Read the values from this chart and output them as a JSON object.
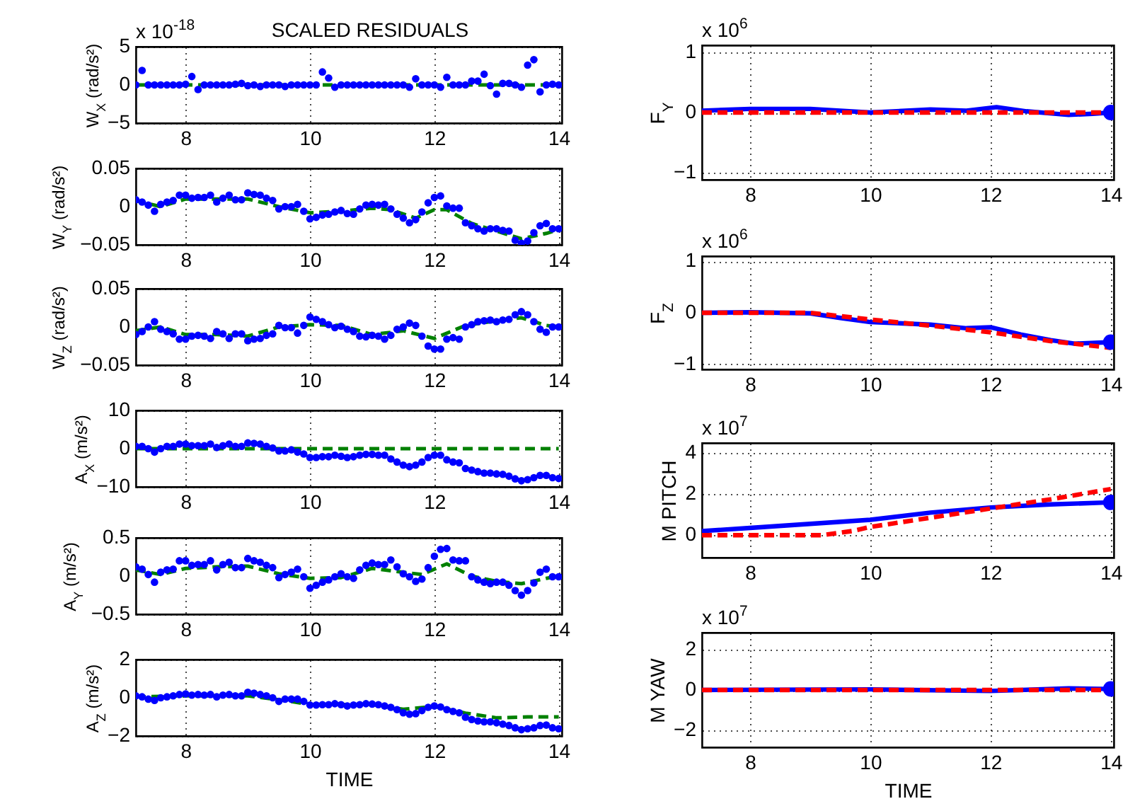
{
  "chart_data": [
    {
      "type": "scatter",
      "title": "SCALED RESIDUALS",
      "ylabel": "W$_{X}$ (rad/s²)",
      "annotations": [
        "x 10$^{-18}$"
      ],
      "xlim": [
        7.2,
        14.05
      ],
      "xticks": [
        8,
        10,
        12,
        14
      ],
      "ylim": [
        -5,
        5
      ],
      "yticks": [
        -5,
        0,
        5
      ],
      "grid": true,
      "x": [
        7.2,
        7.3,
        7.4,
        7.5,
        7.6,
        7.7,
        7.8,
        7.9,
        8,
        8.1,
        8.2,
        8.3,
        8.4,
        8.5,
        8.6,
        8.7,
        8.8,
        8.9,
        9,
        9.1,
        9.2,
        9.3,
        9.4,
        9.5,
        9.6,
        9.7,
        9.8,
        9.9,
        10,
        10.1,
        10.2,
        10.3,
        10.4,
        10.5,
        10.6,
        10.7,
        10.8,
        10.9,
        11,
        11.1,
        11.2,
        11.3,
        11.4,
        11.5,
        11.6,
        11.7,
        11.8,
        11.9,
        12,
        12.1,
        12.2,
        12.3,
        12.4,
        12.5,
        12.6,
        12.7,
        12.8,
        12.9,
        13,
        13.1,
        13.2,
        13.3,
        13.4,
        13.5,
        13.6,
        13.7,
        13.8,
        13.9,
        14
      ],
      "series": [
        {
          "type": "line",
          "color": "#008000",
          "line_style": "dashed",
          "x": [
            7.2,
            14
          ],
          "values": [
            0,
            0
          ]
        },
        {
          "color": "#0000ff",
          "marker": "circle",
          "values": [
            0,
            1.9,
            0,
            0,
            0,
            0,
            0,
            0,
            0.1,
            1.1,
            -0.6,
            0,
            0,
            0,
            0,
            0,
            0.1,
            0.2,
            -0.1,
            0,
            -0.2,
            0,
            0,
            0,
            -0.2,
            0,
            0,
            0,
            0,
            0,
            1.7,
            0.9,
            -0.3,
            0,
            0,
            0,
            0,
            0,
            0,
            0,
            0,
            0,
            0,
            0,
            -0.3,
            0.8,
            0,
            0,
            0,
            -0.3,
            1.0,
            0,
            0,
            0,
            0.5,
            0.5,
            1.4,
            -0.1,
            -1.2,
            0.2,
            0.2,
            0,
            -0.3,
            2.6,
            3.3,
            -0.9,
            0,
            0.1,
            0
          ]
        }
      ]
    },
    {
      "type": "scatter",
      "ylabel": "W$_{Y}$ (rad/s²)",
      "xlim": [
        7.2,
        14.05
      ],
      "xticks": [
        8,
        10,
        12,
        14
      ],
      "ylim": [
        -0.05,
        0.05
      ],
      "yticks": [
        -0.05,
        0,
        0.05
      ],
      "grid": true,
      "x": [
        7.2,
        7.3,
        7.4,
        7.5,
        7.6,
        7.7,
        7.8,
        7.9,
        8,
        8.1,
        8.2,
        8.3,
        8.4,
        8.5,
        8.6,
        8.7,
        8.8,
        8.9,
        9,
        9.1,
        9.2,
        9.3,
        9.4,
        9.5,
        9.6,
        9.7,
        9.8,
        9.9,
        10,
        10.1,
        10.2,
        10.3,
        10.4,
        10.5,
        10.6,
        10.7,
        10.8,
        10.9,
        11,
        11.1,
        11.2,
        11.3,
        11.4,
        11.5,
        11.6,
        11.7,
        11.8,
        11.9,
        12,
        12.1,
        12.2,
        12.3,
        12.4,
        12.5,
        12.6,
        12.7,
        12.8,
        12.9,
        13,
        13.1,
        13.2,
        13.3,
        13.4,
        13.5,
        13.6,
        13.7,
        13.8,
        13.9,
        14
      ],
      "series": [
        {
          "type": "line",
          "color": "#008000",
          "line_style": "dashed",
          "x": [
            7.2,
            7.6,
            8,
            8.5,
            9,
            9.5,
            10,
            10.5,
            11,
            11.3,
            11.7,
            12,
            12.2,
            12.6,
            13,
            13.4,
            13.8,
            14
          ],
          "values": [
            0.008,
            0,
            0.01,
            0.01,
            0.01,
            0,
            -0.008,
            -0.006,
            -0.002,
            -0.004,
            -0.015,
            -0.004,
            -0.004,
            -0.022,
            -0.032,
            -0.042,
            -0.035,
            -0.03
          ]
        },
        {
          "color": "#0000ff",
          "marker": "circle",
          "values": [
            0.009,
            0.006,
            0.002,
            -0.006,
            0.003,
            0.006,
            0.008,
            0.015,
            0.015,
            0.011,
            0.012,
            0.012,
            0.015,
            0.006,
            0.011,
            0.015,
            0.009,
            0.009,
            0.018,
            0.016,
            0.015,
            0.011,
            0.008,
            -0.003,
            0,
            0,
            0.003,
            -0.006,
            -0.016,
            -0.014,
            -0.011,
            -0.01,
            -0.007,
            -0.005,
            -0.009,
            -0.01,
            -0.003,
            0.002,
            0.003,
            0.002,
            0.003,
            -0.003,
            -0.01,
            -0.015,
            -0.021,
            -0.017,
            -0.007,
            0.005,
            0.012,
            0.014,
            0.001,
            -0.002,
            -0.002,
            -0.021,
            -0.025,
            -0.029,
            -0.032,
            -0.029,
            -0.029,
            -0.031,
            -0.032,
            -0.044,
            -0.048,
            -0.045,
            -0.034,
            -0.025,
            -0.022,
            -0.029,
            -0.029
          ]
        }
      ]
    },
    {
      "type": "scatter",
      "ylabel": "W$_{Z}$ (rad/s²)",
      "xlim": [
        7.2,
        14.05
      ],
      "xticks": [
        8,
        10,
        12,
        14
      ],
      "ylim": [
        -0.05,
        0.05
      ],
      "yticks": [
        -0.05,
        0,
        0.05
      ],
      "grid": true,
      "x": [
        7.2,
        7.3,
        7.4,
        7.5,
        7.6,
        7.7,
        7.8,
        7.9,
        8,
        8.1,
        8.2,
        8.3,
        8.4,
        8.5,
        8.6,
        8.7,
        8.8,
        8.9,
        9,
        9.1,
        9.2,
        9.3,
        9.4,
        9.5,
        9.6,
        9.7,
        9.8,
        9.9,
        10,
        10.1,
        10.2,
        10.3,
        10.4,
        10.5,
        10.6,
        10.7,
        10.8,
        10.9,
        11,
        11.1,
        11.2,
        11.3,
        11.4,
        11.5,
        11.6,
        11.7,
        11.8,
        11.9,
        12,
        12.1,
        12.2,
        12.3,
        12.4,
        12.5,
        12.6,
        12.7,
        12.8,
        12.9,
        13,
        13.1,
        13.2,
        13.3,
        13.4,
        13.5,
        13.6,
        13.7,
        13.8,
        13.9,
        14
      ],
      "series": [
        {
          "type": "line",
          "color": "#008000",
          "line_style": "dashed",
          "x": [
            7.2,
            7.6,
            8,
            8.5,
            9,
            9.5,
            10,
            10.5,
            11,
            11.5,
            12,
            12.5,
            13,
            13.4,
            13.8,
            14
          ],
          "values": [
            -0.005,
            0,
            -0.01,
            -0.01,
            -0.012,
            0,
            0.003,
            0.002,
            -0.01,
            -0.005,
            -0.015,
            0.002,
            0.008,
            0.012,
            0.002,
            0
          ]
        },
        {
          "color": "#0000ff",
          "marker": "circle",
          "values": [
            -0.01,
            -0.006,
            0,
            0.007,
            -0.003,
            -0.006,
            -0.009,
            -0.016,
            -0.016,
            -0.012,
            -0.011,
            -0.012,
            -0.015,
            -0.006,
            -0.009,
            -0.015,
            -0.009,
            -0.009,
            -0.018,
            -0.016,
            -0.015,
            -0.011,
            -0.009,
            0.002,
            -0.001,
            -0.001,
            -0.008,
            0.002,
            0.013,
            0.01,
            0.007,
            0.003,
            -0.001,
            0.001,
            -0.003,
            -0.006,
            -0.012,
            -0.013,
            -0.011,
            -0.012,
            -0.016,
            -0.011,
            -0.003,
            0,
            0.005,
            0.002,
            -0.012,
            -0.025,
            -0.029,
            -0.029,
            -0.016,
            -0.014,
            -0.016,
            0,
            0.003,
            0.007,
            0.008,
            0.009,
            0.007,
            0.009,
            0.01,
            0.016,
            0.02,
            0.016,
            0.007,
            -0.003,
            -0.007,
            0,
            0
          ]
        }
      ]
    },
    {
      "type": "scatter",
      "ylabel": "A$_{X}$ (m/s²)",
      "xlim": [
        7.2,
        14.05
      ],
      "xticks": [
        8,
        10,
        12,
        14
      ],
      "ylim": [
        -10,
        10
      ],
      "yticks": [
        -10,
        0,
        10
      ],
      "grid": true,
      "x": [
        7.2,
        7.3,
        7.4,
        7.5,
        7.6,
        7.7,
        7.8,
        7.9,
        8,
        8.1,
        8.2,
        8.3,
        8.4,
        8.5,
        8.6,
        8.7,
        8.8,
        8.9,
        9,
        9.1,
        9.2,
        9.3,
        9.4,
        9.5,
        9.6,
        9.7,
        9.8,
        9.9,
        10,
        10.1,
        10.2,
        10.3,
        10.4,
        10.5,
        10.6,
        10.7,
        10.8,
        10.9,
        11,
        11.1,
        11.2,
        11.3,
        11.4,
        11.5,
        11.6,
        11.7,
        11.8,
        11.9,
        12,
        12.1,
        12.2,
        12.3,
        12.4,
        12.5,
        12.6,
        12.7,
        12.8,
        12.9,
        13,
        13.1,
        13.2,
        13.3,
        13.4,
        13.5,
        13.6,
        13.7,
        13.8,
        13.9,
        14
      ],
      "series": [
        {
          "type": "line",
          "color": "#008000",
          "line_style": "dashed",
          "x": [
            7.2,
            14
          ],
          "values": [
            0,
            0
          ]
        },
        {
          "color": "#0000ff",
          "marker": "circle",
          "values": [
            0.6,
            0.6,
            0,
            -0.9,
            0,
            0.6,
            0.6,
            1.2,
            1.2,
            0.8,
            0.8,
            0.8,
            1.2,
            0.3,
            0.8,
            1.2,
            0.6,
            0.6,
            1.5,
            1.4,
            1.2,
            0.6,
            0.2,
            -0.6,
            -0.6,
            -0.3,
            -0.9,
            -1.4,
            -2.3,
            -2.3,
            -2.1,
            -2.1,
            -1.7,
            -2.0,
            -2.3,
            -2.1,
            -1.7,
            -1.5,
            -1.5,
            -1.7,
            -1.7,
            -2.7,
            -3.5,
            -4.3,
            -4.7,
            -4.3,
            -3.5,
            -2.3,
            -1.7,
            -1.7,
            -2.9,
            -3.5,
            -3.7,
            -5.2,
            -5.6,
            -6.0,
            -6.4,
            -6.4,
            -6.6,
            -6.7,
            -7.2,
            -7.9,
            -8.4,
            -8.1,
            -7.6,
            -7.0,
            -7.0,
            -7.6,
            -7.8
          ]
        }
      ]
    },
    {
      "type": "scatter",
      "ylabel": "A$_{Y}$ (m/s²)",
      "xlim": [
        7.2,
        14.05
      ],
      "xticks": [
        8,
        10,
        12,
        14
      ],
      "ylim": [
        -0.5,
        0.5
      ],
      "yticks": [
        -0.5,
        0,
        0.5
      ],
      "grid": true,
      "x": [
        7.2,
        7.3,
        7.4,
        7.5,
        7.6,
        7.7,
        7.8,
        7.9,
        8,
        8.1,
        8.2,
        8.3,
        8.4,
        8.5,
        8.6,
        8.7,
        8.8,
        8.9,
        9,
        9.1,
        9.2,
        9.3,
        9.4,
        9.5,
        9.6,
        9.7,
        9.8,
        9.9,
        10,
        10.1,
        10.2,
        10.3,
        10.4,
        10.5,
        10.6,
        10.7,
        10.8,
        10.9,
        11,
        11.1,
        11.2,
        11.3,
        11.4,
        11.5,
        11.6,
        11.7,
        11.8,
        11.9,
        12,
        12.1,
        12.2,
        12.3,
        12.4,
        12.5,
        12.6,
        12.7,
        12.8,
        12.9,
        13,
        13.1,
        13.2,
        13.3,
        13.4,
        13.5,
        13.6,
        13.7,
        13.8,
        13.9,
        14
      ],
      "series": [
        {
          "type": "line",
          "color": "#008000",
          "line_style": "dashed",
          "x": [
            7.2,
            7.6,
            8,
            8.5,
            9,
            9.5,
            10,
            10.5,
            11,
            11.5,
            11.8,
            12.2,
            12.6,
            13,
            13.4,
            13.8,
            14
          ],
          "values": [
            0.08,
            0.02,
            0.1,
            0.12,
            0.13,
            0.03,
            -0.03,
            -0.02,
            0.1,
            0.05,
            0.02,
            0.16,
            0,
            -0.07,
            -0.1,
            -0.03,
            0
          ]
        },
        {
          "color": "#0000ff",
          "marker": "circle",
          "values": [
            0.12,
            0.09,
            0.02,
            -0.08,
            0.05,
            0.08,
            0.09,
            0.2,
            0.2,
            0.14,
            0.15,
            0.15,
            0.2,
            0.08,
            0.15,
            0.18,
            0.11,
            0.11,
            0.23,
            0.2,
            0.18,
            0.14,
            0.11,
            -0.02,
            0.02,
            0.05,
            0.09,
            -0.01,
            -0.16,
            -0.12,
            -0.08,
            -0.05,
            -0.01,
            0.03,
            -0.01,
            -0.03,
            0.08,
            0.14,
            0.17,
            0.15,
            0.15,
            0.21,
            0.12,
            0.03,
            -0.01,
            -0.07,
            -0.04,
            0.11,
            0.26,
            0.35,
            0.36,
            0.21,
            0.2,
            0.2,
            -0.01,
            -0.05,
            -0.08,
            -0.1,
            -0.08,
            -0.08,
            -0.12,
            -0.19,
            -0.25,
            -0.19,
            -0.09,
            0.05,
            0.09,
            -0.01,
            -0.01
          ]
        }
      ]
    },
    {
      "type": "scatter",
      "ylabel": "A$_{Z}$ (m/s²)",
      "xlabel": "TIME",
      "xlim": [
        7.2,
        14.05
      ],
      "xticks": [
        8,
        10,
        12,
        14
      ],
      "ylim": [
        -2,
        2
      ],
      "yticks": [
        -2,
        0,
        2
      ],
      "grid": true,
      "x": [
        7.2,
        7.3,
        7.4,
        7.5,
        7.6,
        7.7,
        7.8,
        7.9,
        8,
        8.1,
        8.2,
        8.3,
        8.4,
        8.5,
        8.6,
        8.7,
        8.8,
        8.9,
        9,
        9.1,
        9.2,
        9.3,
        9.4,
        9.5,
        9.6,
        9.7,
        9.8,
        9.9,
        10,
        10.1,
        10.2,
        10.3,
        10.4,
        10.5,
        10.6,
        10.7,
        10.8,
        10.9,
        11,
        11.1,
        11.2,
        11.3,
        11.4,
        11.5,
        11.6,
        11.7,
        11.8,
        11.9,
        12,
        12.1,
        12.2,
        12.3,
        12.4,
        12.5,
        12.6,
        12.7,
        12.8,
        12.9,
        13,
        13.1,
        13.2,
        13.3,
        13.4,
        13.5,
        13.6,
        13.7,
        13.8,
        13.9,
        14
      ],
      "series": [
        {
          "type": "line",
          "color": "#008000",
          "line_style": "dashed",
          "x": [
            7.2,
            8,
            9,
            9.5,
            10,
            11,
            11.5,
            12,
            12.5,
            13,
            13.5,
            14
          ],
          "values": [
            0.05,
            0.1,
            0.1,
            -0.1,
            -0.35,
            -0.35,
            -0.6,
            -0.45,
            -0.8,
            -1.05,
            -1.0,
            -1.0
          ]
        },
        {
          "color": "#0000ff",
          "marker": "circle",
          "values": [
            0.1,
            0.05,
            -0.07,
            -0.14,
            0,
            0.05,
            0.1,
            0.17,
            0.2,
            0.14,
            0.17,
            0.14,
            0.17,
            0.05,
            0.14,
            0.17,
            0.1,
            0.1,
            0.29,
            0.24,
            0.17,
            0.1,
            0,
            -0.19,
            -0.07,
            -0.07,
            -0.07,
            -0.19,
            -0.38,
            -0.38,
            -0.36,
            -0.36,
            -0.31,
            -0.36,
            -0.43,
            -0.38,
            -0.36,
            -0.31,
            -0.33,
            -0.36,
            -0.43,
            -0.5,
            -0.62,
            -0.79,
            -0.86,
            -0.83,
            -0.67,
            -0.5,
            -0.43,
            -0.48,
            -0.62,
            -0.71,
            -0.79,
            -1.02,
            -1.14,
            -1.21,
            -1.26,
            -1.26,
            -1.31,
            -1.38,
            -1.45,
            -1.57,
            -1.67,
            -1.62,
            -1.57,
            -1.45,
            -1.43,
            -1.57,
            -1.62
          ]
        }
      ]
    },
    {
      "type": "line",
      "ylabel": "F$_{Y}$",
      "annotations": [
        "x 10$^{6}$"
      ],
      "xlim": [
        7.2,
        14.05
      ],
      "xticks": [
        8,
        10,
        12,
        14
      ],
      "ylim": [
        -1.12,
        1.12
      ],
      "yticks": [
        -1,
        0,
        1
      ],
      "grid": true,
      "series": [
        {
          "color": "#0000ff",
          "line_style": "solid",
          "x": [
            7.2,
            8,
            9,
            10,
            11,
            11.6,
            12.1,
            12.6,
            13.3,
            13.7,
            14
          ],
          "values": [
            0.03,
            0.06,
            0.06,
            0,
            0.05,
            0.03,
            0.09,
            0.02,
            -0.04,
            -0.02,
            0
          ]
        },
        {
          "color": "#ff0000",
          "line_style": "dashed",
          "x": [
            7.2,
            14
          ],
          "values": [
            0,
            0
          ]
        },
        {
          "type": "scatter",
          "color": "#0000ff",
          "marker": "circle",
          "x": [
            14
          ],
          "values": [
            0
          ]
        }
      ]
    },
    {
      "type": "line",
      "ylabel": "F$_{Z}$",
      "annotations": [
        "x 10$^{6}$"
      ],
      "xlim": [
        7.2,
        14.05
      ],
      "xticks": [
        8,
        10,
        12,
        14
      ],
      "ylim": [
        -1.1,
        1.1
      ],
      "yticks": [
        -1,
        0,
        1
      ],
      "grid": true,
      "series": [
        {
          "color": "#0000ff",
          "line_style": "solid",
          "x": [
            7.2,
            8,
            9,
            9.5,
            10,
            11,
            11.6,
            12,
            12.5,
            13,
            13.4,
            14
          ],
          "values": [
            0,
            0.01,
            -0.01,
            -0.1,
            -0.18,
            -0.23,
            -0.3,
            -0.28,
            -0.42,
            -0.53,
            -0.6,
            -0.57
          ]
        },
        {
          "color": "#ff0000",
          "line_style": "dashed",
          "x": [
            7.2,
            8,
            9,
            10,
            11,
            12,
            13,
            14
          ],
          "values": [
            0,
            0,
            0,
            -0.13,
            -0.25,
            -0.38,
            -0.55,
            -0.68
          ]
        },
        {
          "type": "scatter",
          "color": "#0000ff",
          "marker": "circle",
          "x": [
            14
          ],
          "values": [
            -0.57
          ]
        }
      ]
    },
    {
      "type": "line",
      "ylabel": "M PITCH",
      "annotations": [
        "x 10$^{7}$"
      ],
      "xlim": [
        7.2,
        14.05
      ],
      "xticks": [
        8,
        10,
        12,
        14
      ],
      "ylim": [
        -1.1,
        4.5
      ],
      "yticks": [
        0,
        2,
        4
      ],
      "grid": true,
      "series": [
        {
          "color": "#0000ff",
          "line_style": "solid",
          "x": [
            7.2,
            8,
            9,
            10,
            11,
            12,
            13,
            14
          ],
          "values": [
            0.2,
            0.35,
            0.55,
            0.75,
            1.1,
            1.35,
            1.5,
            1.6
          ]
        },
        {
          "color": "#ff0000",
          "line_style": "dashed",
          "x": [
            7.2,
            8,
            9.2,
            9.7,
            10,
            11,
            12,
            13,
            14
          ],
          "values": [
            0,
            0,
            0,
            0.2,
            0.4,
            0.85,
            1.3,
            1.75,
            2.25
          ]
        },
        {
          "type": "scatter",
          "color": "#0000ff",
          "marker": "circle",
          "x": [
            14
          ],
          "values": [
            1.6
          ]
        }
      ]
    },
    {
      "type": "line",
      "ylabel": "M YAW",
      "xlabel": "TIME",
      "annotations": [
        "x 10$^{7}$"
      ],
      "xlim": [
        7.2,
        14.05
      ],
      "xticks": [
        8,
        10,
        12,
        14
      ],
      "ylim": [
        -2.85,
        2.85
      ],
      "yticks": [
        -2,
        0,
        2
      ],
      "grid": true,
      "series": [
        {
          "color": "#0000ff",
          "line_style": "solid",
          "x": [
            7.2,
            10,
            12,
            13.3,
            14
          ],
          "values": [
            0,
            0.03,
            -0.05,
            0.08,
            0.05
          ]
        },
        {
          "color": "#ff0000",
          "line_style": "dashed",
          "x": [
            7.2,
            14
          ],
          "values": [
            0,
            0
          ]
        },
        {
          "type": "scatter",
          "color": "#0000ff",
          "marker": "circle",
          "x": [
            14
          ],
          "values": [
            0.05
          ]
        }
      ]
    }
  ]
}
